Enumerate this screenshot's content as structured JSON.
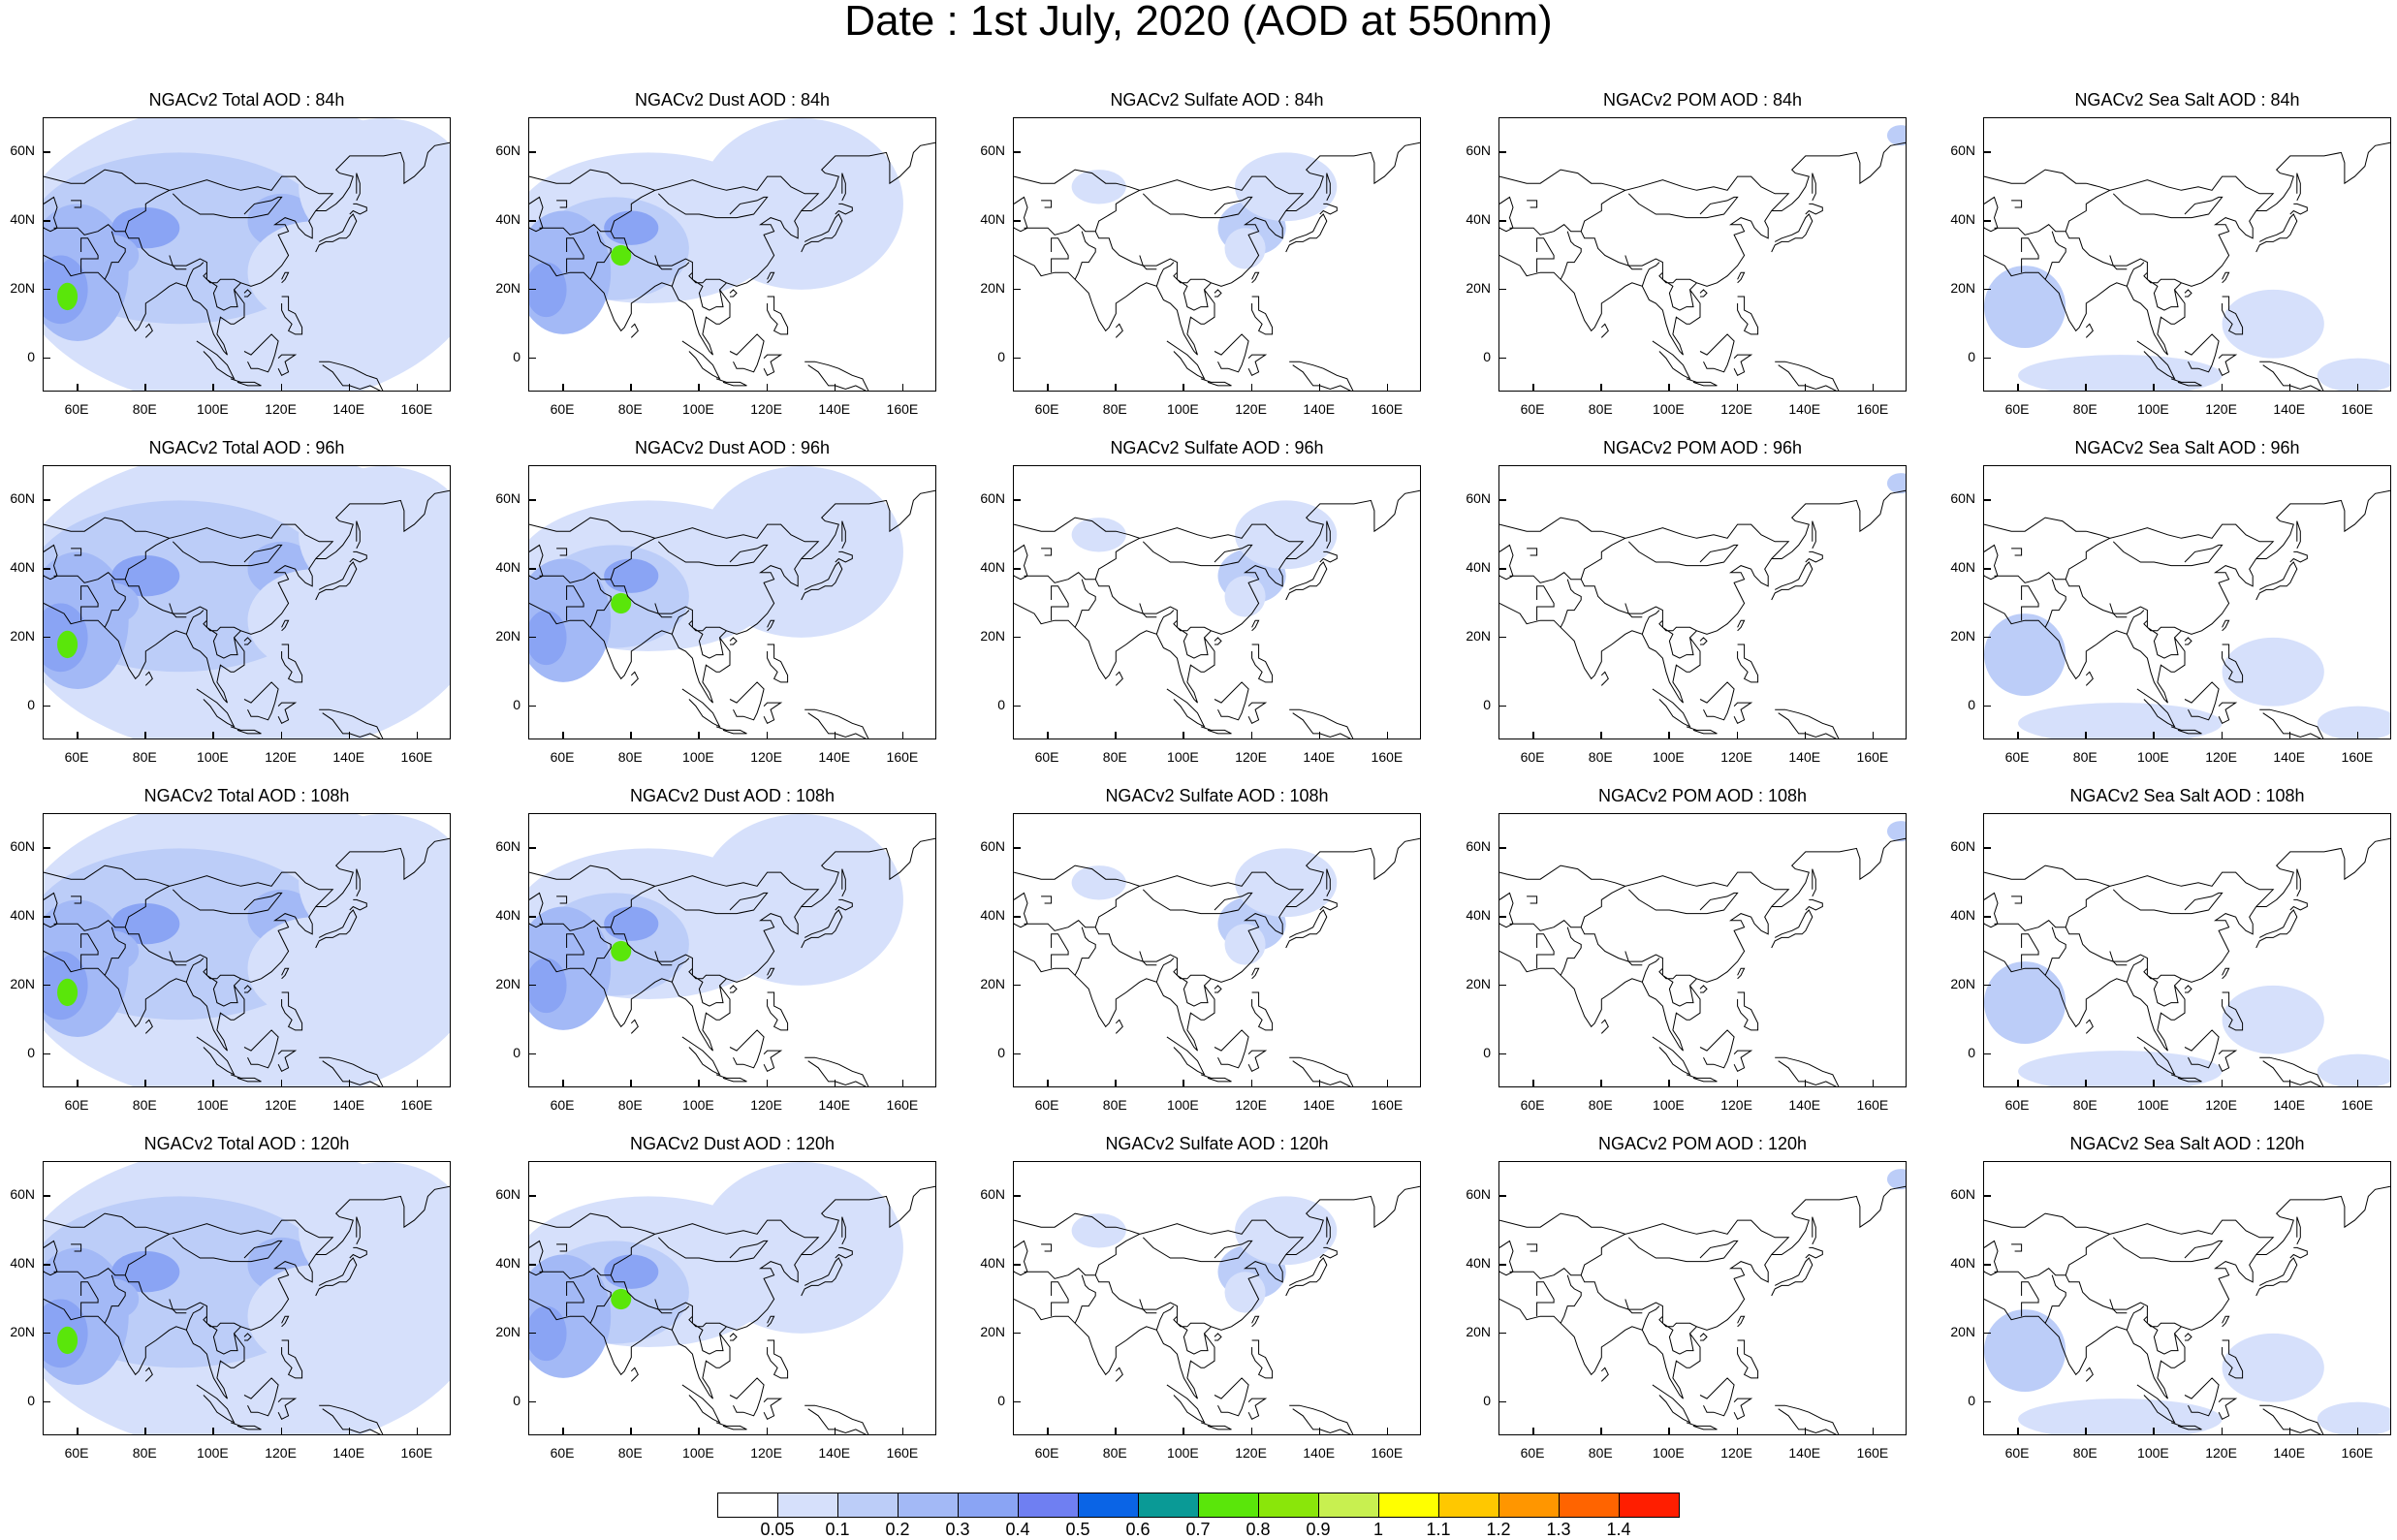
{
  "title": "Date : 1st July, 2020 (AOD at 550nm)",
  "axes": {
    "lat_ticks": [
      "60N",
      "40N",
      "20N",
      "0"
    ],
    "lon_ticks": [
      "60E",
      "80E",
      "100E",
      "120E",
      "140E",
      "160E"
    ]
  },
  "rows": [
    {
      "hour": "84h",
      "panels": [
        {
          "title": "NGACv2 Total AOD : 84h",
          "species": "total"
        },
        {
          "title": "NGACv2 Dust AOD : 84h",
          "species": "dust"
        },
        {
          "title": "NGACv2 Sulfate AOD : 84h",
          "species": "sulfate"
        },
        {
          "title": "NGACv2 POM AOD : 84h",
          "species": "pom"
        },
        {
          "title": "NGACv2 Sea Salt AOD : 84h",
          "species": "seasalt"
        }
      ]
    },
    {
      "hour": "96h",
      "panels": [
        {
          "title": "NGACv2 Total AOD : 96h",
          "species": "total"
        },
        {
          "title": "NGACv2 Dust AOD : 96h",
          "species": "dust"
        },
        {
          "title": "NGACv2 Sulfate AOD : 96h",
          "species": "sulfate"
        },
        {
          "title": "NGACv2 POM AOD : 96h",
          "species": "pom"
        },
        {
          "title": "NGACv2 Sea Salt AOD : 96h",
          "species": "seasalt"
        }
      ]
    },
    {
      "hour": "108h",
      "panels": [
        {
          "title": "NGACv2 Total AOD : 108h",
          "species": "total"
        },
        {
          "title": "NGACv2 Dust AOD : 108h",
          "species": "dust"
        },
        {
          "title": "NGACv2 Sulfate AOD : 108h",
          "species": "sulfate"
        },
        {
          "title": "NGACv2 POM AOD : 108h",
          "species": "pom"
        },
        {
          "title": "NGACv2 Sea Salt AOD : 108h",
          "species": "seasalt"
        }
      ]
    },
    {
      "hour": "120h",
      "panels": [
        {
          "title": "NGACv2 Total AOD : 120h",
          "species": "total"
        },
        {
          "title": "NGACv2 Dust AOD : 120h",
          "species": "dust"
        },
        {
          "title": "NGACv2 Sulfate AOD : 120h",
          "species": "sulfate"
        },
        {
          "title": "NGACv2 POM AOD : 120h",
          "species": "pom"
        },
        {
          "title": "NGACv2 Sea Salt  AOD : 120h",
          "species": "seasalt"
        }
      ]
    }
  ],
  "colorbar": {
    "labels": [
      "0.05",
      "0.1",
      "0.2",
      "0.3",
      "0.4",
      "0.5",
      "0.6",
      "0.7",
      "0.8",
      "0.9",
      "1",
      "1.1",
      "1.2",
      "1.3",
      "1.4"
    ],
    "colors": [
      "#ffffff",
      "#d6e0fb",
      "#bccdf8",
      "#a3b9f6",
      "#8aa4f4",
      "#6f7ff2",
      "#0a64e6",
      "#0a9a96",
      "#5ae60a",
      "#8ae60a",
      "#c8f050",
      "#ffff00",
      "#ffc800",
      "#ff9600",
      "#ff6400",
      "#ff1e00"
    ]
  }
}
